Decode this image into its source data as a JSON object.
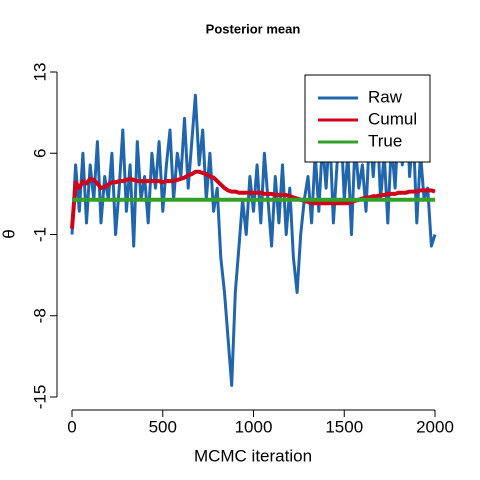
{
  "chart_data": {
    "type": "line",
    "title": "Posterior mean",
    "xlabel": "MCMC iteration",
    "ylabel": "θ",
    "x": [
      0,
      20,
      40,
      60,
      80,
      100,
      120,
      140,
      160,
      180,
      200,
      220,
      240,
      260,
      280,
      300,
      320,
      340,
      360,
      380,
      400,
      420,
      440,
      460,
      480,
      500,
      520,
      540,
      560,
      580,
      600,
      620,
      640,
      660,
      680,
      700,
      720,
      740,
      760,
      780,
      800,
      820,
      840,
      860,
      880,
      900,
      920,
      940,
      960,
      980,
      1000,
      1020,
      1040,
      1060,
      1080,
      1100,
      1120,
      1140,
      1160,
      1180,
      1200,
      1220,
      1240,
      1260,
      1280,
      1300,
      1320,
      1340,
      1360,
      1380,
      1400,
      1420,
      1440,
      1460,
      1480,
      1500,
      1520,
      1540,
      1560,
      1580,
      1600,
      1620,
      1640,
      1660,
      1680,
      1700,
      1720,
      1740,
      1760,
      1780,
      1800,
      1820,
      1840,
      1860,
      1880,
      1900,
      1920,
      1940,
      1960,
      1980,
      2000
    ],
    "series": [
      {
        "name": "Raw",
        "color": "#2166ac",
        "values": [
          -1,
          5,
          1,
          6,
          0,
          5,
          2,
          7,
          0,
          4,
          2,
          6,
          -1,
          3,
          8,
          1,
          5,
          -2,
          7,
          2,
          4,
          0,
          6,
          3,
          7,
          1,
          5,
          8,
          2,
          6,
          4,
          9,
          3,
          7,
          11,
          5,
          8,
          2,
          6,
          1,
          3,
          -3,
          -6,
          -10,
          -14,
          -6,
          -2,
          2,
          -1,
          4,
          1,
          5,
          0,
          6,
          2,
          -2,
          4,
          0,
          5,
          -1,
          3,
          -3,
          -6,
          -1,
          2,
          4,
          0,
          6,
          1,
          7,
          3,
          8,
          0,
          5,
          9,
          2,
          6,
          -1,
          7,
          3,
          5,
          1,
          8,
          4,
          9,
          2,
          6,
          0,
          7,
          3,
          9,
          5,
          12,
          4,
          8,
          0,
          6,
          2,
          3,
          -2,
          -1
        ]
      },
      {
        "name": "Cumul",
        "color": "#d0021b",
        "values": [
          -0.5,
          3.5,
          3,
          3.6,
          3.4,
          3.8,
          3.7,
          3.4,
          3,
          3.1,
          3.3,
          3.5,
          3.5,
          3.6,
          3.6,
          3.7,
          3.8,
          3.7,
          3.6,
          3.6,
          3.6,
          3.6,
          3.6,
          3.6,
          3.6,
          3.5,
          3.6,
          3.6,
          3.6,
          3.7,
          3.8,
          3.9,
          4.1,
          4.2,
          4.4,
          4.4,
          4.3,
          4.2,
          4.0,
          3.9,
          3.6,
          3.3,
          3.0,
          2.8,
          2.7,
          2.7,
          2.6,
          2.6,
          2.6,
          2.6,
          2.6,
          2.6,
          2.6,
          2.5,
          2.5,
          2.5,
          2.4,
          2.4,
          2.4,
          2.4,
          2.3,
          2.2,
          2.1,
          2.0,
          1.9,
          1.8,
          1.7,
          1.7,
          1.7,
          1.7,
          1.7,
          1.7,
          1.7,
          1.7,
          1.7,
          1.7,
          1.7,
          1.8,
          1.9,
          2.0,
          2.1,
          2.2,
          2.2,
          2.3,
          2.3,
          2.4,
          2.4,
          2.5,
          2.5,
          2.5,
          2.6,
          2.6,
          2.6,
          2.7,
          2.7,
          2.7,
          2.8,
          2.8,
          2.8,
          2.8,
          2.7
        ]
      },
      {
        "name": "True",
        "color": "#33a02c",
        "values": [
          2,
          2,
          2,
          2,
          2,
          2,
          2,
          2,
          2,
          2,
          2,
          2,
          2,
          2,
          2,
          2,
          2,
          2,
          2,
          2,
          2,
          2,
          2,
          2,
          2,
          2,
          2,
          2,
          2,
          2,
          2,
          2,
          2,
          2,
          2,
          2,
          2,
          2,
          2,
          2,
          2,
          2,
          2,
          2,
          2,
          2,
          2,
          2,
          2,
          2,
          2,
          2,
          2,
          2,
          2,
          2,
          2,
          2,
          2,
          2,
          2,
          2,
          2,
          2,
          2,
          2,
          2,
          2,
          2,
          2,
          2,
          2,
          2,
          2,
          2,
          2,
          2,
          2,
          2,
          2,
          2,
          2,
          2,
          2,
          2,
          2,
          2,
          2,
          2,
          2,
          2,
          2,
          2,
          2,
          2,
          2,
          2,
          2,
          2,
          2,
          2
        ]
      }
    ],
    "xlim": [
      0,
      2000
    ],
    "xticks": [
      0,
      500,
      1000,
      1500,
      2000
    ],
    "ylim": [
      -15,
      13
    ],
    "yticks": [
      -15,
      -8,
      -1,
      6,
      13
    ],
    "legend": "top-right"
  }
}
